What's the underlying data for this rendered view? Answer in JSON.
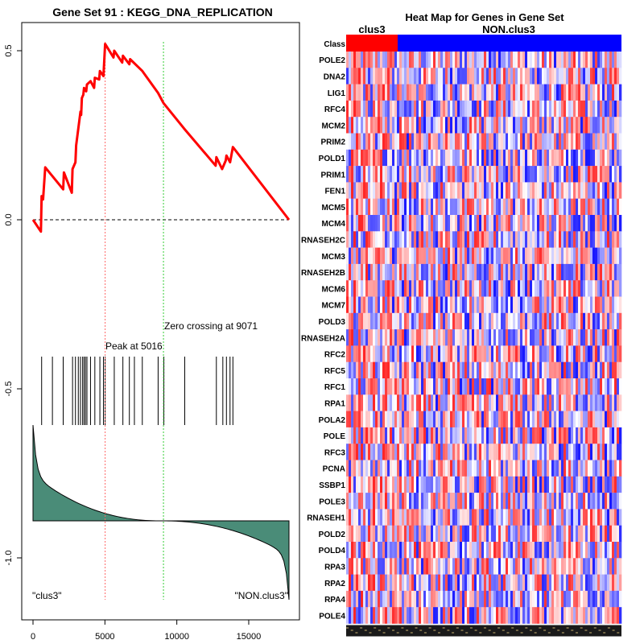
{
  "left_panel": {
    "title": "Gene Set  91 : KEGG_DNA_REPLICATION",
    "peak_label": "Peak at 5016",
    "zero_cross_label": "Zero crossing at 9071",
    "left_class_label": "\"clus3\"",
    "right_class_label": "\"NON.clus3\"",
    "colors": {
      "es_curve": "#ff0000",
      "peak_line": "#ff6666",
      "zero_line": "#33cc33",
      "ranked_fill": "#4a8c78"
    }
  },
  "right_panel": {
    "title": "Heat Map for Genes in Gene Set",
    "class_row_label": "Class",
    "class_left": "clus3",
    "class_right": "NON.clus3",
    "genes": [
      "POLE2",
      "DNA2",
      "LIG1",
      "RFC4",
      "MCM2",
      "PRIM2",
      "POLD1",
      "PRIM1",
      "FEN1",
      "MCM5",
      "MCM4",
      "RNASEH2C",
      "MCM3",
      "RNASEH2B",
      "MCM6",
      "MCM7",
      "POLD3",
      "RNASEH2A",
      "RFC2",
      "RFC5",
      "RFC1",
      "RPA1",
      "POLA2",
      "POLE",
      "RFC3",
      "PCNA",
      "SSBP1",
      "POLE3",
      "RNASEH1",
      "POLD2",
      "POLD4",
      "RPA3",
      "RPA2",
      "RPA4",
      "POLE4"
    ],
    "colors": {
      "class_left": "#ff0000",
      "class_right": "#0000ff"
    }
  },
  "chart_data": {
    "type": "line",
    "title": "Gene Set  91 : KEGG_DNA_REPLICATION",
    "xlabel": "",
    "ylabel": "",
    "xlim": [
      0,
      17800
    ],
    "ylim": [
      -1.18,
      0.6
    ],
    "x_ticks": [
      0,
      5000,
      10000,
      15000
    ],
    "y_ticks": [
      0.5,
      0.0,
      -0.5,
      -1.0
    ],
    "y_tick_labels": [
      "0.5",
      "0.0",
      "-0.5",
      "-1.0"
    ],
    "peak_position": 5016,
    "zero_crossing": 9071,
    "hit_positions": [
      600,
      1350,
      2100,
      2750,
      2950,
      3150,
      3300,
      3450,
      3550,
      3650,
      3750,
      4000,
      4300,
      4650,
      4900,
      5016,
      5650,
      6250,
      6700,
      7050,
      7600,
      8700,
      9100,
      10550,
      12750,
      13200,
      13450,
      13700,
      13900
    ],
    "es_points": [
      [
        0,
        0.0
      ],
      [
        550,
        -0.035
      ],
      [
        600,
        0.07
      ],
      [
        700,
        0.06
      ],
      [
        850,
        0.155
      ],
      [
        2100,
        0.09
      ],
      [
        2150,
        0.14
      ],
      [
        2700,
        0.08
      ],
      [
        2750,
        0.15
      ],
      [
        2950,
        0.17
      ],
      [
        3000,
        0.22
      ],
      [
        3150,
        0.27
      ],
      [
        3300,
        0.32
      ],
      [
        3350,
        0.31
      ],
      [
        3400,
        0.36
      ],
      [
        3500,
        0.37
      ],
      [
        3550,
        0.39
      ],
      [
        3700,
        0.38
      ],
      [
        3750,
        0.4
      ],
      [
        4000,
        0.41
      ],
      [
        4250,
        0.39
      ],
      [
        4300,
        0.42
      ],
      [
        4600,
        0.415
      ],
      [
        4650,
        0.44
      ],
      [
        4900,
        0.425
      ],
      [
        5016,
        0.52
      ],
      [
        5600,
        0.48
      ],
      [
        5650,
        0.5
      ],
      [
        6200,
        0.465
      ],
      [
        6250,
        0.485
      ],
      [
        6700,
        0.46
      ],
      [
        6750,
        0.475
      ],
      [
        7600,
        0.44
      ],
      [
        8700,
        0.375
      ],
      [
        9071,
        0.345
      ],
      [
        10500,
        0.27
      ],
      [
        12700,
        0.16
      ],
      [
        12750,
        0.185
      ],
      [
        13150,
        0.15
      ],
      [
        13400,
        0.175
      ],
      [
        13450,
        0.19
      ],
      [
        13700,
        0.17
      ],
      [
        13900,
        0.215
      ],
      [
        17800,
        0.0
      ]
    ]
  }
}
